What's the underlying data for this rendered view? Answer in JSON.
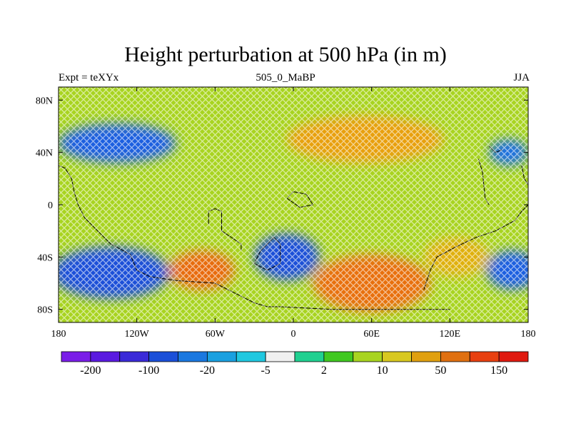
{
  "title": "Height perturbation at 500 hPa (in m)",
  "subtitle_left": "Expt = teXYx",
  "subtitle_center": "505_0_MaBP",
  "subtitle_right": "JJA",
  "map": {
    "projection": "cylindrical-equidistant",
    "lon_range": [
      -180,
      180
    ],
    "lat_range": [
      -90,
      90
    ],
    "x_ticks": [
      {
        "lon": -180,
        "label": "180"
      },
      {
        "lon": -120,
        "label": "120W"
      },
      {
        "lon": -60,
        "label": "60W"
      },
      {
        "lon": 0,
        "label": "0"
      },
      {
        "lon": 60,
        "label": "60E"
      },
      {
        "lon": 120,
        "label": "120E"
      },
      {
        "lon": 180,
        "label": "180"
      }
    ],
    "y_ticks": [
      {
        "lat": 80,
        "label": "80N"
      },
      {
        "lat": 40,
        "label": "40N"
      },
      {
        "lat": 0,
        "label": "0"
      },
      {
        "lat": -40,
        "label": "40S"
      },
      {
        "lat": -80,
        "label": "80S"
      }
    ],
    "background_color": "#a8d420",
    "coastline_color": "#000000",
    "anomaly_regions": [
      {
        "name": "negative-anomaly-north-pacific",
        "lon": -135,
        "lat": 47,
        "rx": 45,
        "ry": 15,
        "color": "#1a5fe0"
      },
      {
        "name": "negative-anomaly-arctic-east",
        "lon": 165,
        "lat": 40,
        "rx": 15,
        "ry": 10,
        "color": "#1a70e0"
      },
      {
        "name": "positive-anomaly-eurasia",
        "lon": 55,
        "lat": 50,
        "rx": 60,
        "ry": 18,
        "color": "#e8a010"
      },
      {
        "name": "negative-anomaly-south-pacific",
        "lon": -140,
        "lat": -52,
        "rx": 45,
        "ry": 20,
        "color": "#1a4fd8"
      },
      {
        "name": "positive-anomaly-south-america",
        "lon": -70,
        "lat": -50,
        "rx": 25,
        "ry": 15,
        "color": "#e86a10"
      },
      {
        "name": "negative-anomaly-south-atlantic",
        "lon": -5,
        "lat": -40,
        "rx": 25,
        "ry": 18,
        "color": "#1a4fd8"
      },
      {
        "name": "positive-anomaly-indian-ocean",
        "lon": 60,
        "lat": -60,
        "rx": 45,
        "ry": 22,
        "color": "#e87010"
      },
      {
        "name": "negative-anomaly-south-pacific-east",
        "lon": 168,
        "lat": -50,
        "rx": 20,
        "ry": 15,
        "color": "#1a5fe0"
      },
      {
        "name": "positive-anomaly-australia",
        "lon": 125,
        "lat": -40,
        "rx": 25,
        "ry": 15,
        "color": "#e0b010"
      }
    ],
    "coastlines": [
      [
        [
          -180,
          30
        ],
        [
          -175,
          28
        ],
        [
          -170,
          20
        ],
        [
          -168,
          10
        ],
        [
          -165,
          0
        ],
        [
          -160,
          -10
        ],
        [
          -150,
          -20
        ],
        [
          -140,
          -30
        ],
        [
          -125,
          -38
        ],
        [
          -120,
          -50
        ],
        [
          -110,
          -55
        ],
        [
          -90,
          -58
        ],
        [
          -60,
          -60
        ],
        [
          -40,
          -70
        ],
        [
          -30,
          -75
        ],
        [
          -20,
          -78
        ],
        [
          -10,
          -78
        ],
        [
          30,
          -80
        ],
        [
          100,
          -80
        ],
        [
          120,
          -80
        ]
      ],
      [
        [
          -65,
          -15
        ],
        [
          -65,
          -5
        ],
        [
          -60,
          -3
        ],
        [
          -55,
          -5
        ],
        [
          -55,
          -20
        ],
        [
          -40,
          -30
        ],
        [
          -40,
          -35
        ]
      ],
      [
        [
          -20,
          -30
        ],
        [
          -15,
          -25
        ],
        [
          -10,
          -30
        ],
        [
          -10,
          -45
        ],
        [
          -20,
          -50
        ],
        [
          -30,
          -45
        ],
        [
          -25,
          -35
        ],
        [
          -20,
          -30
        ]
      ],
      [
        [
          -5,
          5
        ],
        [
          0,
          10
        ],
        [
          10,
          8
        ],
        [
          15,
          0
        ],
        [
          5,
          -2
        ],
        [
          -5,
          5
        ]
      ],
      [
        [
          100,
          -65
        ],
        [
          105,
          -50
        ],
        [
          110,
          -40
        ],
        [
          125,
          -32
        ],
        [
          140,
          -25
        ],
        [
          155,
          -20
        ],
        [
          170,
          -12
        ],
        [
          175,
          -5
        ],
        [
          180,
          0
        ]
      ],
      [
        [
          142,
          35
        ],
        [
          145,
          25
        ],
        [
          147,
          5
        ],
        [
          150,
          0
        ]
      ],
      [
        [
          150,
          45
        ],
        [
          155,
          40
        ],
        [
          160,
          42
        ]
      ],
      [
        [
          175,
          30
        ],
        [
          177,
          20
        ],
        [
          180,
          15
        ]
      ]
    ]
  },
  "colorbar": {
    "colors": [
      "#7a1ee8",
      "#5a1ae0",
      "#3a2ad8",
      "#1a4fd8",
      "#1a78e0",
      "#1aa0e0",
      "#20c8e0",
      "#f0f0f0",
      "#20d090",
      "#40c820",
      "#a8d420",
      "#d8c820",
      "#e0a010",
      "#e07010",
      "#e84010",
      "#e01a10"
    ],
    "labels": [
      "-200",
      "-100",
      "-20",
      "-5",
      "2",
      "10",
      "50",
      "150"
    ]
  }
}
